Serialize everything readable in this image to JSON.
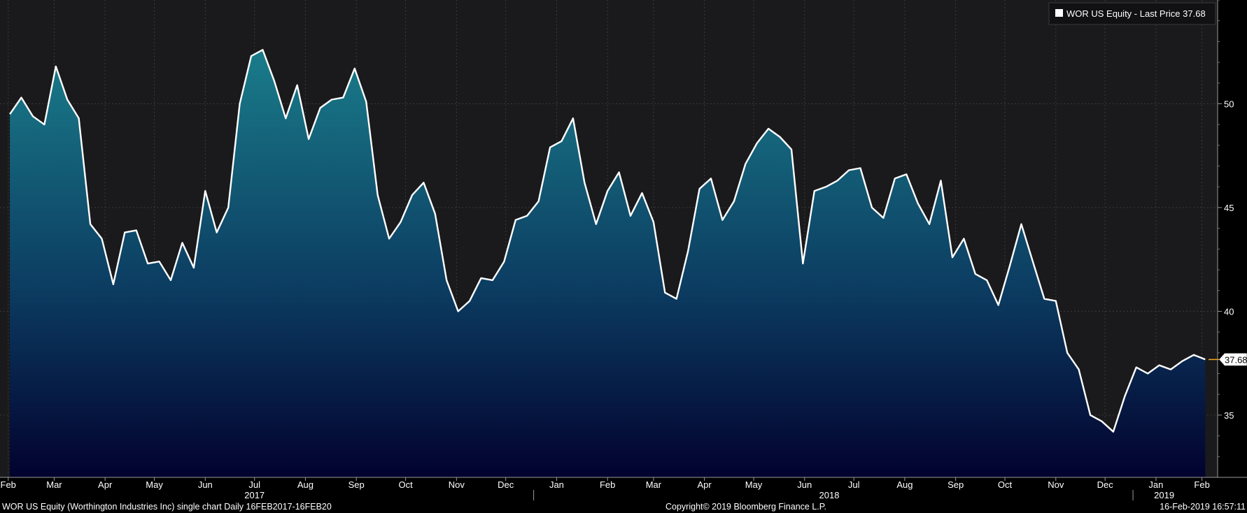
{
  "colors": {
    "background": "#1a1a1c",
    "line": "#ffffff",
    "fill_top": "#1a7c8a",
    "fill_bottom": "#02022e",
    "grid": "#3a3a3a",
    "last_price_marker": "#f5a623"
  },
  "legend": {
    "label": "WOR US Equity - Last Price 37.68",
    "swatch_color": "#ffffff"
  },
  "last_price": {
    "label": "37.68",
    "value": 37.68
  },
  "footer": {
    "left": "WOR US Equity (Worthington Industries Inc) single chart  Daily 16FEB2017-16FEB20",
    "center": "Copyright© 2019 Bloomberg Finance L.P.",
    "right": "16-Feb-2019 16:57:11"
  },
  "chart_data": {
    "type": "area",
    "title": "",
    "xlabel": "",
    "ylabel": "",
    "series": [
      {
        "name": "WOR US Equity - Last Price",
        "x": [
          "2017-02-16",
          "2017-02-23",
          "2017-03-02",
          "2017-03-09",
          "2017-03-16",
          "2017-03-23",
          "2017-03-30",
          "2017-04-06",
          "2017-04-13",
          "2017-04-20",
          "2017-04-27",
          "2017-05-04",
          "2017-05-11",
          "2017-05-18",
          "2017-05-25",
          "2017-06-01",
          "2017-06-08",
          "2017-06-15",
          "2017-06-22",
          "2017-06-29",
          "2017-07-06",
          "2017-07-13",
          "2017-07-20",
          "2017-07-27",
          "2017-08-03",
          "2017-08-10",
          "2017-08-17",
          "2017-08-24",
          "2017-08-31",
          "2017-09-07",
          "2017-09-14",
          "2017-09-21",
          "2017-09-28",
          "2017-10-05",
          "2017-10-12",
          "2017-10-19",
          "2017-10-26",
          "2017-11-02",
          "2017-11-09",
          "2017-11-16",
          "2017-11-23",
          "2017-11-30",
          "2017-12-07",
          "2017-12-14",
          "2017-12-21",
          "2017-12-28",
          "2018-01-04",
          "2018-01-11",
          "2018-01-18",
          "2018-01-25",
          "2018-02-01",
          "2018-02-08",
          "2018-02-15",
          "2018-02-22",
          "2018-03-01",
          "2018-03-08",
          "2018-03-15",
          "2018-03-22",
          "2018-03-29",
          "2018-04-05",
          "2018-04-12",
          "2018-04-19",
          "2018-04-26",
          "2018-05-03",
          "2018-05-10",
          "2018-05-17",
          "2018-05-24",
          "2018-05-31",
          "2018-06-07",
          "2018-06-14",
          "2018-06-21",
          "2018-06-28",
          "2018-07-05",
          "2018-07-12",
          "2018-07-19",
          "2018-07-26",
          "2018-08-02",
          "2018-08-09",
          "2018-08-16",
          "2018-08-23",
          "2018-08-30",
          "2018-09-06",
          "2018-09-13",
          "2018-09-20",
          "2018-09-27",
          "2018-10-04",
          "2018-10-11",
          "2018-10-18",
          "2018-10-25",
          "2018-11-01",
          "2018-11-08",
          "2018-11-15",
          "2018-11-22",
          "2018-11-29",
          "2018-12-06",
          "2018-12-13",
          "2018-12-20",
          "2018-12-27",
          "2019-01-03",
          "2019-01-10",
          "2019-01-17",
          "2019-01-24",
          "2019-01-31",
          "2019-02-07",
          "2019-02-14"
        ],
        "values": [
          49.5,
          50.3,
          49.4,
          49.0,
          51.8,
          50.2,
          49.3,
          44.2,
          43.5,
          41.3,
          43.8,
          43.9,
          42.3,
          42.4,
          41.5,
          43.3,
          42.1,
          45.8,
          43.8,
          45.0,
          50.0,
          52.3,
          52.6,
          51.1,
          49.3,
          50.9,
          48.3,
          49.8,
          50.2,
          50.3,
          51.7,
          50.1,
          45.6,
          43.5,
          44.3,
          45.6,
          46.2,
          44.7,
          41.5,
          40.0,
          40.5,
          41.6,
          41.5,
          42.4,
          44.4,
          44.6,
          45.3,
          47.9,
          48.2,
          49.3,
          46.2,
          44.2,
          45.8,
          46.7,
          44.6,
          45.7,
          44.3,
          40.9,
          40.6,
          42.9,
          45.9,
          46.4,
          44.4,
          45.3,
          47.1,
          48.1,
          48.8,
          48.4,
          47.8,
          42.3,
          45.8,
          46.0,
          46.3,
          46.8,
          46.9,
          45.0,
          44.5,
          46.4,
          46.6,
          45.2,
          44.2,
          46.3,
          42.6,
          43.5,
          41.8,
          41.5,
          40.3,
          42.2,
          44.2,
          42.4,
          40.6,
          40.5,
          38.0,
          37.2,
          35.0,
          34.7,
          34.2,
          35.9,
          37.3,
          37.0,
          37.4,
          37.2,
          37.6,
          37.9,
          37.68
        ]
      }
    ],
    "ylim": [
      32.0,
      55.0
    ],
    "yticks": [
      35,
      40,
      45,
      50
    ],
    "xlim": [
      "2017-02-10",
      "2019-02-16"
    ],
    "month_ticks": [
      {
        "label": "Feb",
        "date": "2017-02-15"
      },
      {
        "label": "Mar",
        "date": "2017-03-15"
      },
      {
        "label": "Apr",
        "date": "2017-04-15"
      },
      {
        "label": "May",
        "date": "2017-05-15"
      },
      {
        "label": "Jun",
        "date": "2017-06-15"
      },
      {
        "label": "Jul",
        "date": "2017-07-15"
      },
      {
        "label": "Aug",
        "date": "2017-08-15"
      },
      {
        "label": "Sep",
        "date": "2017-09-15"
      },
      {
        "label": "Oct",
        "date": "2017-10-15"
      },
      {
        "label": "Nov",
        "date": "2017-11-15"
      },
      {
        "label": "Dec",
        "date": "2017-12-15"
      },
      {
        "label": "Jan",
        "date": "2018-01-15"
      },
      {
        "label": "Feb",
        "date": "2018-02-15"
      },
      {
        "label": "Mar",
        "date": "2018-03-15"
      },
      {
        "label": "Apr",
        "date": "2018-04-15"
      },
      {
        "label": "May",
        "date": "2018-05-15"
      },
      {
        "label": "Jun",
        "date": "2018-06-15"
      },
      {
        "label": "Jul",
        "date": "2018-07-15"
      },
      {
        "label": "Aug",
        "date": "2018-08-15"
      },
      {
        "label": "Sep",
        "date": "2018-09-15"
      },
      {
        "label": "Oct",
        "date": "2018-10-15"
      },
      {
        "label": "Nov",
        "date": "2018-11-15"
      },
      {
        "label": "Dec",
        "date": "2018-12-15"
      },
      {
        "label": "Jan",
        "date": "2019-01-15"
      },
      {
        "label": "Feb",
        "date": "2019-02-12"
      }
    ],
    "year_labels": [
      {
        "label": "2017",
        "date": "2017-07-15"
      },
      {
        "label": "2018",
        "date": "2018-06-30"
      },
      {
        "label": "2019",
        "date": "2019-01-20"
      }
    ],
    "year_boundaries": [
      "2018-01-01",
      "2019-01-01"
    ],
    "grid": true,
    "legend_position": "top-right"
  }
}
